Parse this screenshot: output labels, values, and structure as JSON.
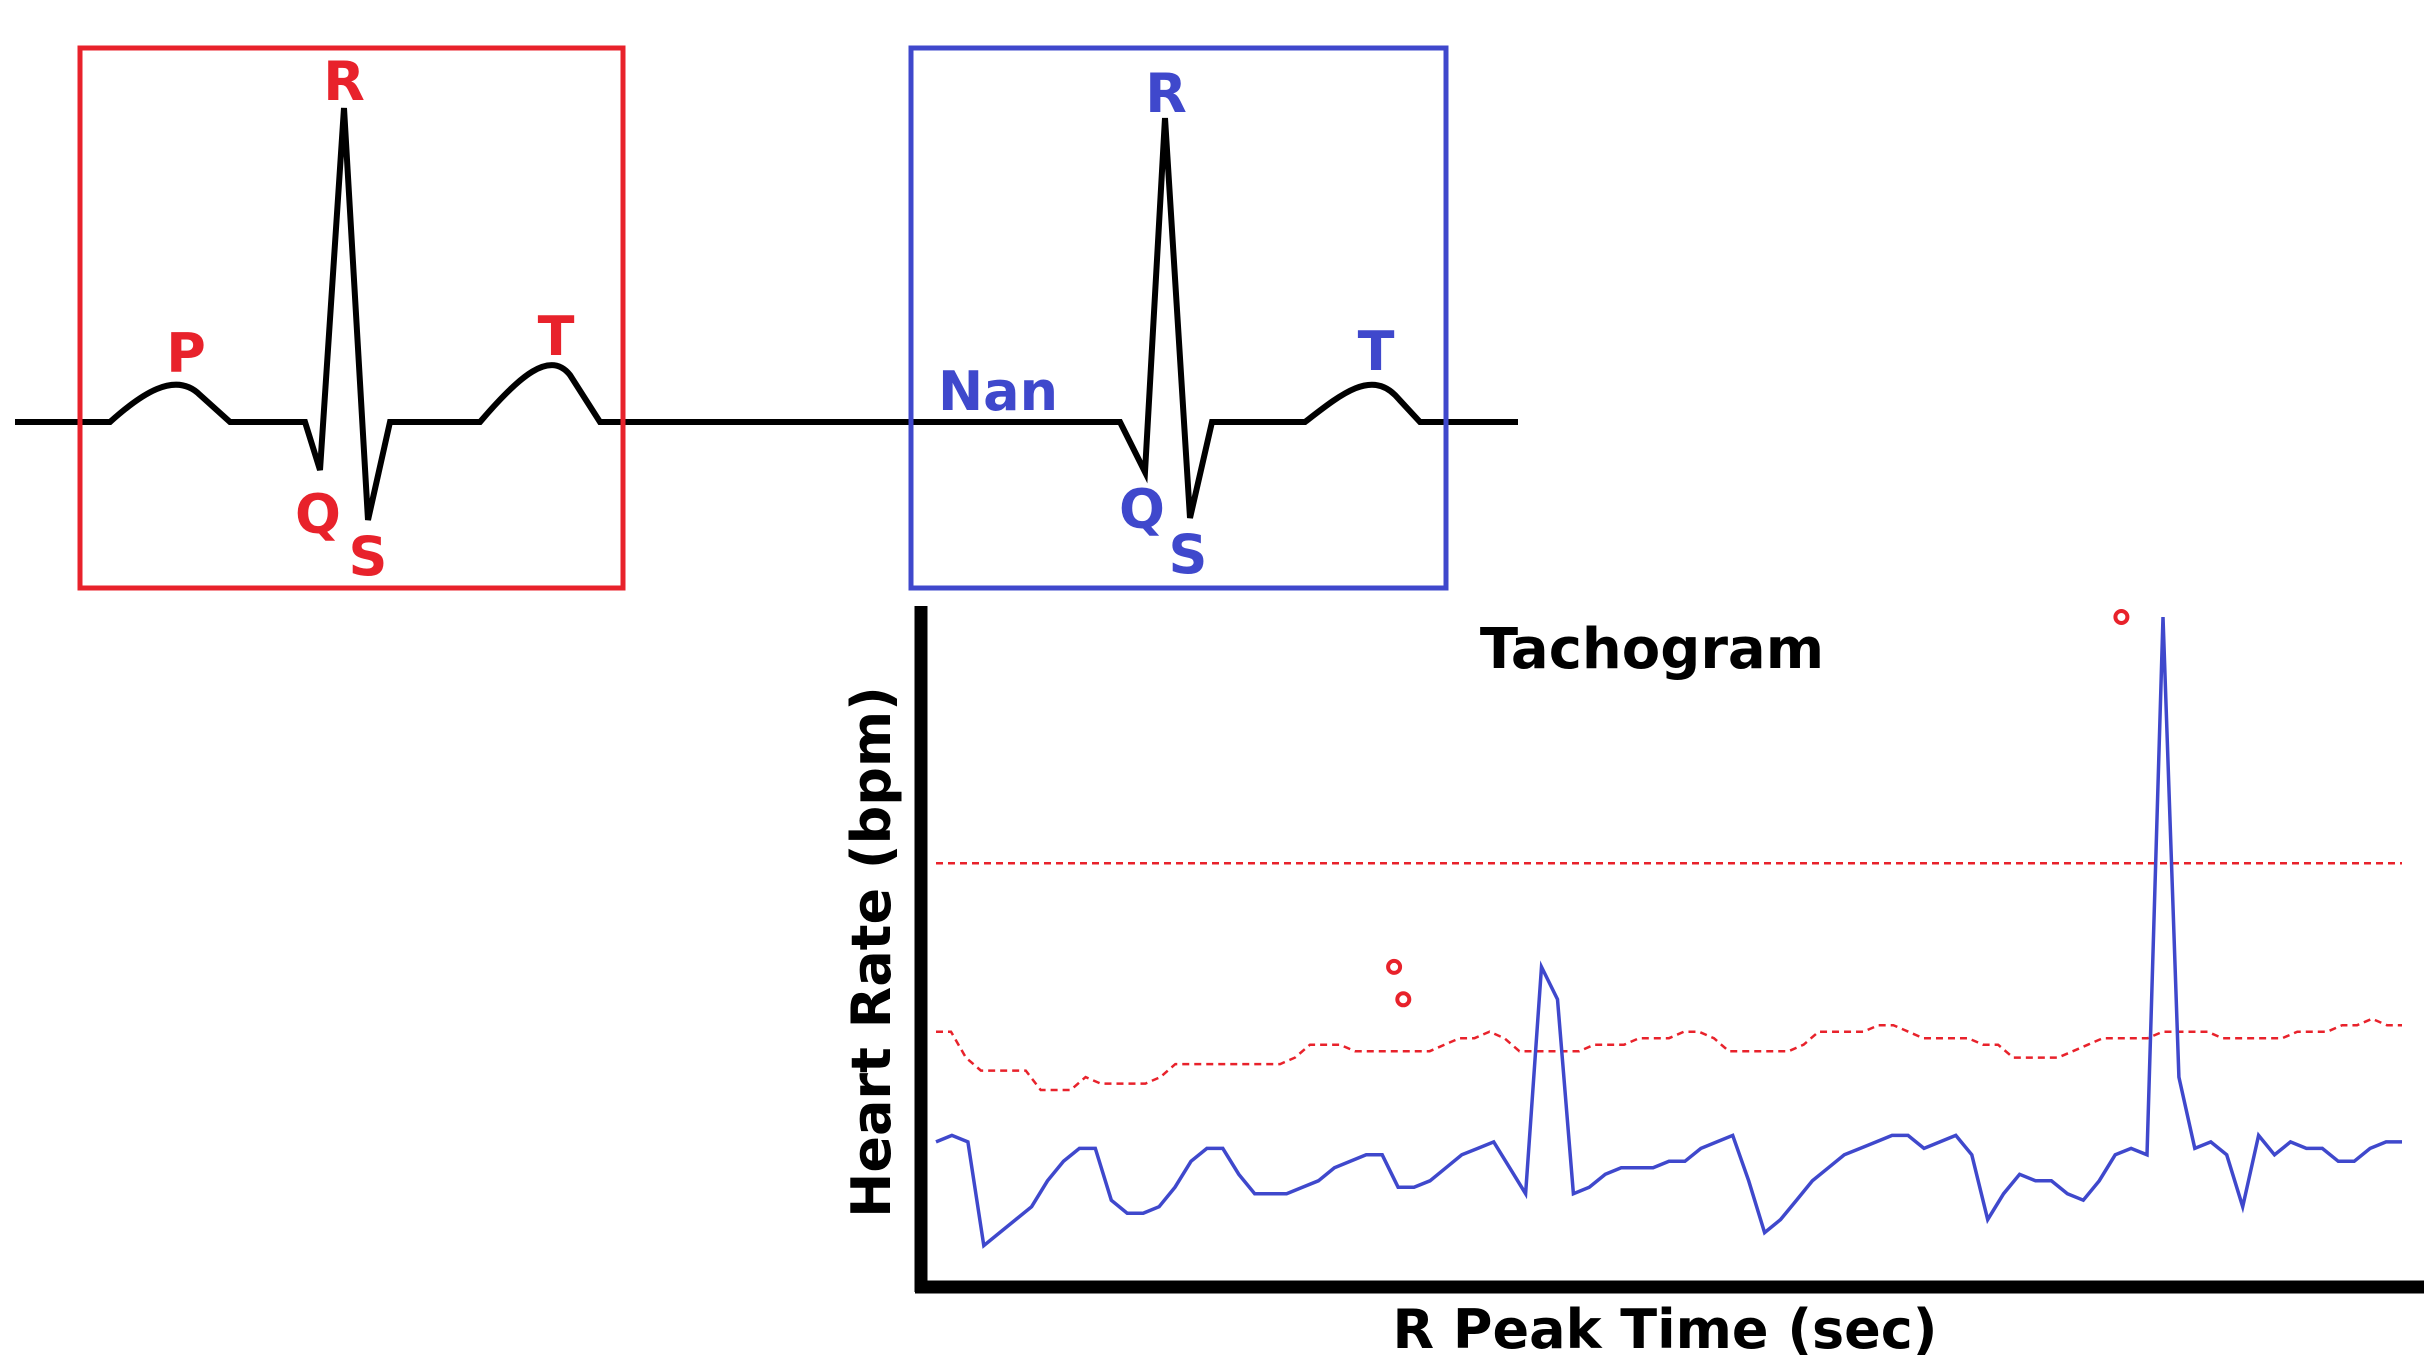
{
  "colors": {
    "normal": "#e8222b",
    "missing": "#3f48cc",
    "waveform": "#000000",
    "threshold": "#e8222b",
    "series": "#3f48cc",
    "outlier_marker": "#e8222b"
  },
  "beat_normal": {
    "labels": {
      "p": "P",
      "q": "Q",
      "r": "R",
      "s": "S",
      "t": "T"
    }
  },
  "beat_missing": {
    "labels": {
      "p": "Nan",
      "q": "Q",
      "r": "R",
      "s": "S",
      "t": "T"
    }
  },
  "chart_data": {
    "type": "line",
    "title": "Tachogram",
    "xlabel": "R Peak Time (sec)",
    "ylabel": "Heart Rate (bpm)",
    "grid": false,
    "xlim": [
      0,
      128
    ],
    "ylim": [
      0,
      100
    ],
    "series": [
      {
        "values": [
          19,
          20,
          19,
          3,
          5,
          7,
          9,
          13,
          16,
          18,
          18,
          10,
          8,
          8,
          9,
          12,
          16,
          18,
          18,
          14,
          11,
          11,
          11,
          12,
          13,
          15,
          16,
          17,
          17,
          12,
          12,
          13,
          15,
          17,
          18,
          19,
          15,
          11,
          46,
          41,
          11,
          12,
          14,
          15,
          15,
          15,
          16,
          16,
          18,
          19,
          20,
          13,
          5,
          7,
          10,
          13,
          15,
          17,
          18,
          19,
          20,
          20,
          18,
          19,
          20,
          17,
          7,
          11,
          14,
          13,
          13,
          11,
          10,
          13,
          17,
          18,
          17,
          100,
          29,
          18,
          19,
          17,
          9,
          20,
          17,
          19,
          18,
          18,
          16,
          16,
          18,
          19,
          19
        ]
      }
    ],
    "thresholds": [
      {
        "values": [
          36,
          36,
          32,
          30,
          30,
          30,
          30,
          27,
          27,
          27,
          29,
          28,
          28,
          28,
          28,
          29,
          31,
          31,
          31,
          31,
          31,
          31,
          31,
          31,
          32,
          34,
          34,
          34,
          33,
          33,
          33,
          33,
          33,
          33,
          34,
          35,
          35,
          36,
          35,
          33,
          33,
          33,
          33,
          33,
          34,
          34,
          34,
          35,
          35,
          35,
          36,
          36,
          35,
          33,
          33,
          33,
          33,
          33,
          34,
          36,
          36,
          36,
          36,
          37,
          37,
          36,
          35,
          35,
          35,
          35,
          34,
          34,
          32,
          32,
          32,
          32,
          33,
          34,
          35,
          35,
          35,
          35,
          36,
          36,
          36,
          36,
          35,
          35,
          35,
          35,
          35,
          36,
          36,
          36,
          37,
          37,
          38,
          37,
          37
        ]
      },
      {
        "values": [
          62,
          62
        ]
      }
    ],
    "outliers": [
      {
        "x": 40.0,
        "y": 46
      },
      {
        "x": 40.8,
        "y": 41
      },
      {
        "x": 103.5,
        "y": 100
      }
    ]
  }
}
